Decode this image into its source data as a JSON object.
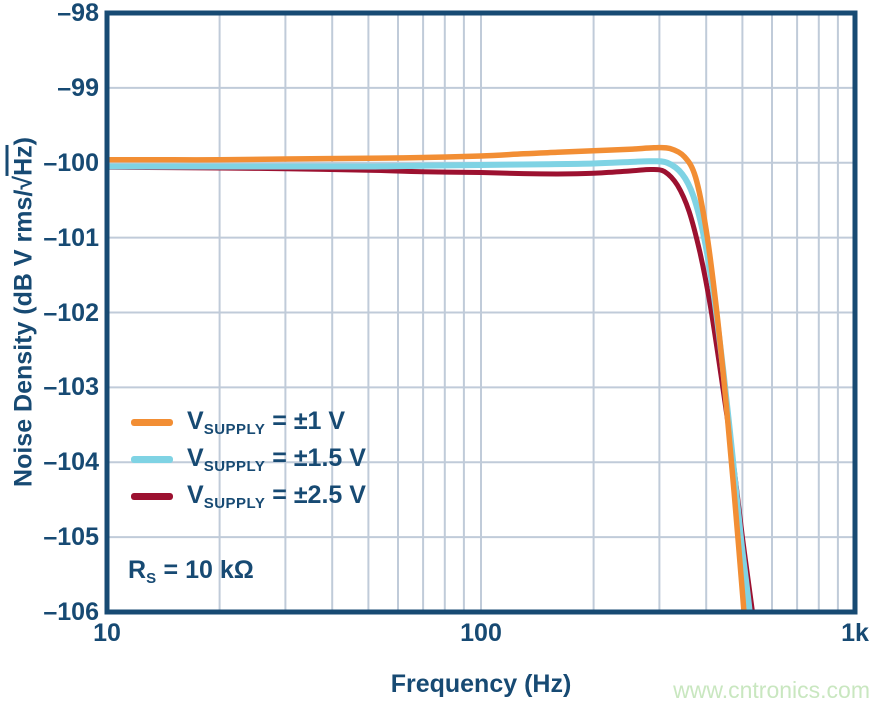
{
  "colors": {
    "navy": "#174A73",
    "grid": "#C0CBD9",
    "background": "#FFFFFF",
    "watermark_green": "#C9E7C0"
  },
  "axes": {
    "x": {
      "label": "Frequency (Hz)",
      "scale": "log",
      "ticks": [
        {
          "value": 10,
          "label": "10"
        },
        {
          "value": 100,
          "label": "100"
        },
        {
          "value": 1000,
          "label": "1k"
        }
      ]
    },
    "y": {
      "label_prefix": "Noise Density (dB V rms/",
      "radical": "√",
      "radicand": "Hz",
      "label_suffix": ")",
      "ticks": [
        {
          "value": -98,
          "label": "–98"
        },
        {
          "value": -99,
          "label": "–99"
        },
        {
          "value": -100,
          "label": "–100"
        },
        {
          "value": -101,
          "label": "–101"
        },
        {
          "value": -102,
          "label": "–102"
        },
        {
          "value": -103,
          "label": "–103"
        },
        {
          "value": -104,
          "label": "–104"
        },
        {
          "value": -105,
          "label": "–105"
        },
        {
          "value": -106,
          "label": "–106"
        }
      ]
    }
  },
  "legend": {
    "items": [
      {
        "pre": "V",
        "sub": "SUPPLY",
        "post": " = ±1 V",
        "color": "#F28E34"
      },
      {
        "pre": "V",
        "sub": "SUPPLY",
        "post": " = ±1.5 V",
        "color": "#7FD3E4"
      },
      {
        "pre": "V",
        "sub": "SUPPLY",
        "post": " = ±2.5 V",
        "color": "#9C1130"
      }
    ]
  },
  "annotation": {
    "pre": "R",
    "sub": "S",
    "post": " = 10 kΩ"
  },
  "watermark": "www.cntronics.com",
  "chart_data": {
    "type": "line",
    "title": "",
    "xlabel": "Frequency (Hz)",
    "ylabel": "Noise Density (dB V rms/√Hz)",
    "x_scale": "log",
    "xlim": [
      10,
      1000
    ],
    "ylim": [
      -106,
      -98
    ],
    "grid": true,
    "legend_position": "inside-left-middle",
    "annotation": "R_S = 10 kΩ",
    "series": [
      {
        "name": "V_SUPPLY = ±1 V",
        "color": "#F28E34",
        "width": 5.5,
        "x": [
          10,
          15,
          20,
          30,
          50,
          70,
          100,
          130,
          160,
          200,
          250,
          290,
          320,
          350,
          375,
          400,
          425,
          450,
          475,
          505,
          520
        ],
        "y": [
          -99.96,
          -99.96,
          -99.96,
          -99.95,
          -99.94,
          -99.93,
          -99.91,
          -99.88,
          -99.86,
          -99.84,
          -99.82,
          -99.8,
          -99.81,
          -99.92,
          -100.2,
          -100.9,
          -101.9,
          -103.1,
          -104.4,
          -106.0,
          -106.8
        ]
      },
      {
        "name": "V_SUPPLY = ±1.5 V",
        "color": "#7FD3E4",
        "width": 6,
        "x": [
          10,
          20,
          30,
          50,
          70,
          100,
          150,
          200,
          250,
          285,
          315,
          345,
          370,
          395,
          420,
          445,
          470,
          495,
          523,
          540
        ],
        "y": [
          -100.05,
          -100.05,
          -100.05,
          -100.05,
          -100.04,
          -100.03,
          -100.02,
          -100.01,
          -99.99,
          -99.98,
          -100.0,
          -100.15,
          -100.45,
          -101.0,
          -101.8,
          -102.8,
          -103.9,
          -105.0,
          -106.0,
          -106.8
        ]
      },
      {
        "name": "V_SUPPLY = ±2.5 V",
        "color": "#9C1130",
        "width": 5,
        "x": [
          10,
          20,
          30,
          50,
          70,
          100,
          130,
          160,
          200,
          250,
          285,
          310,
          335,
          360,
          385,
          410,
          440,
          470,
          500,
          532,
          545
        ],
        "y": [
          -100.06,
          -100.07,
          -100.08,
          -100.1,
          -100.12,
          -100.13,
          -100.145,
          -100.15,
          -100.14,
          -100.11,
          -100.09,
          -100.12,
          -100.3,
          -100.65,
          -101.2,
          -101.9,
          -102.9,
          -103.9,
          -105.0,
          -106.0,
          -106.4
        ]
      }
    ]
  }
}
